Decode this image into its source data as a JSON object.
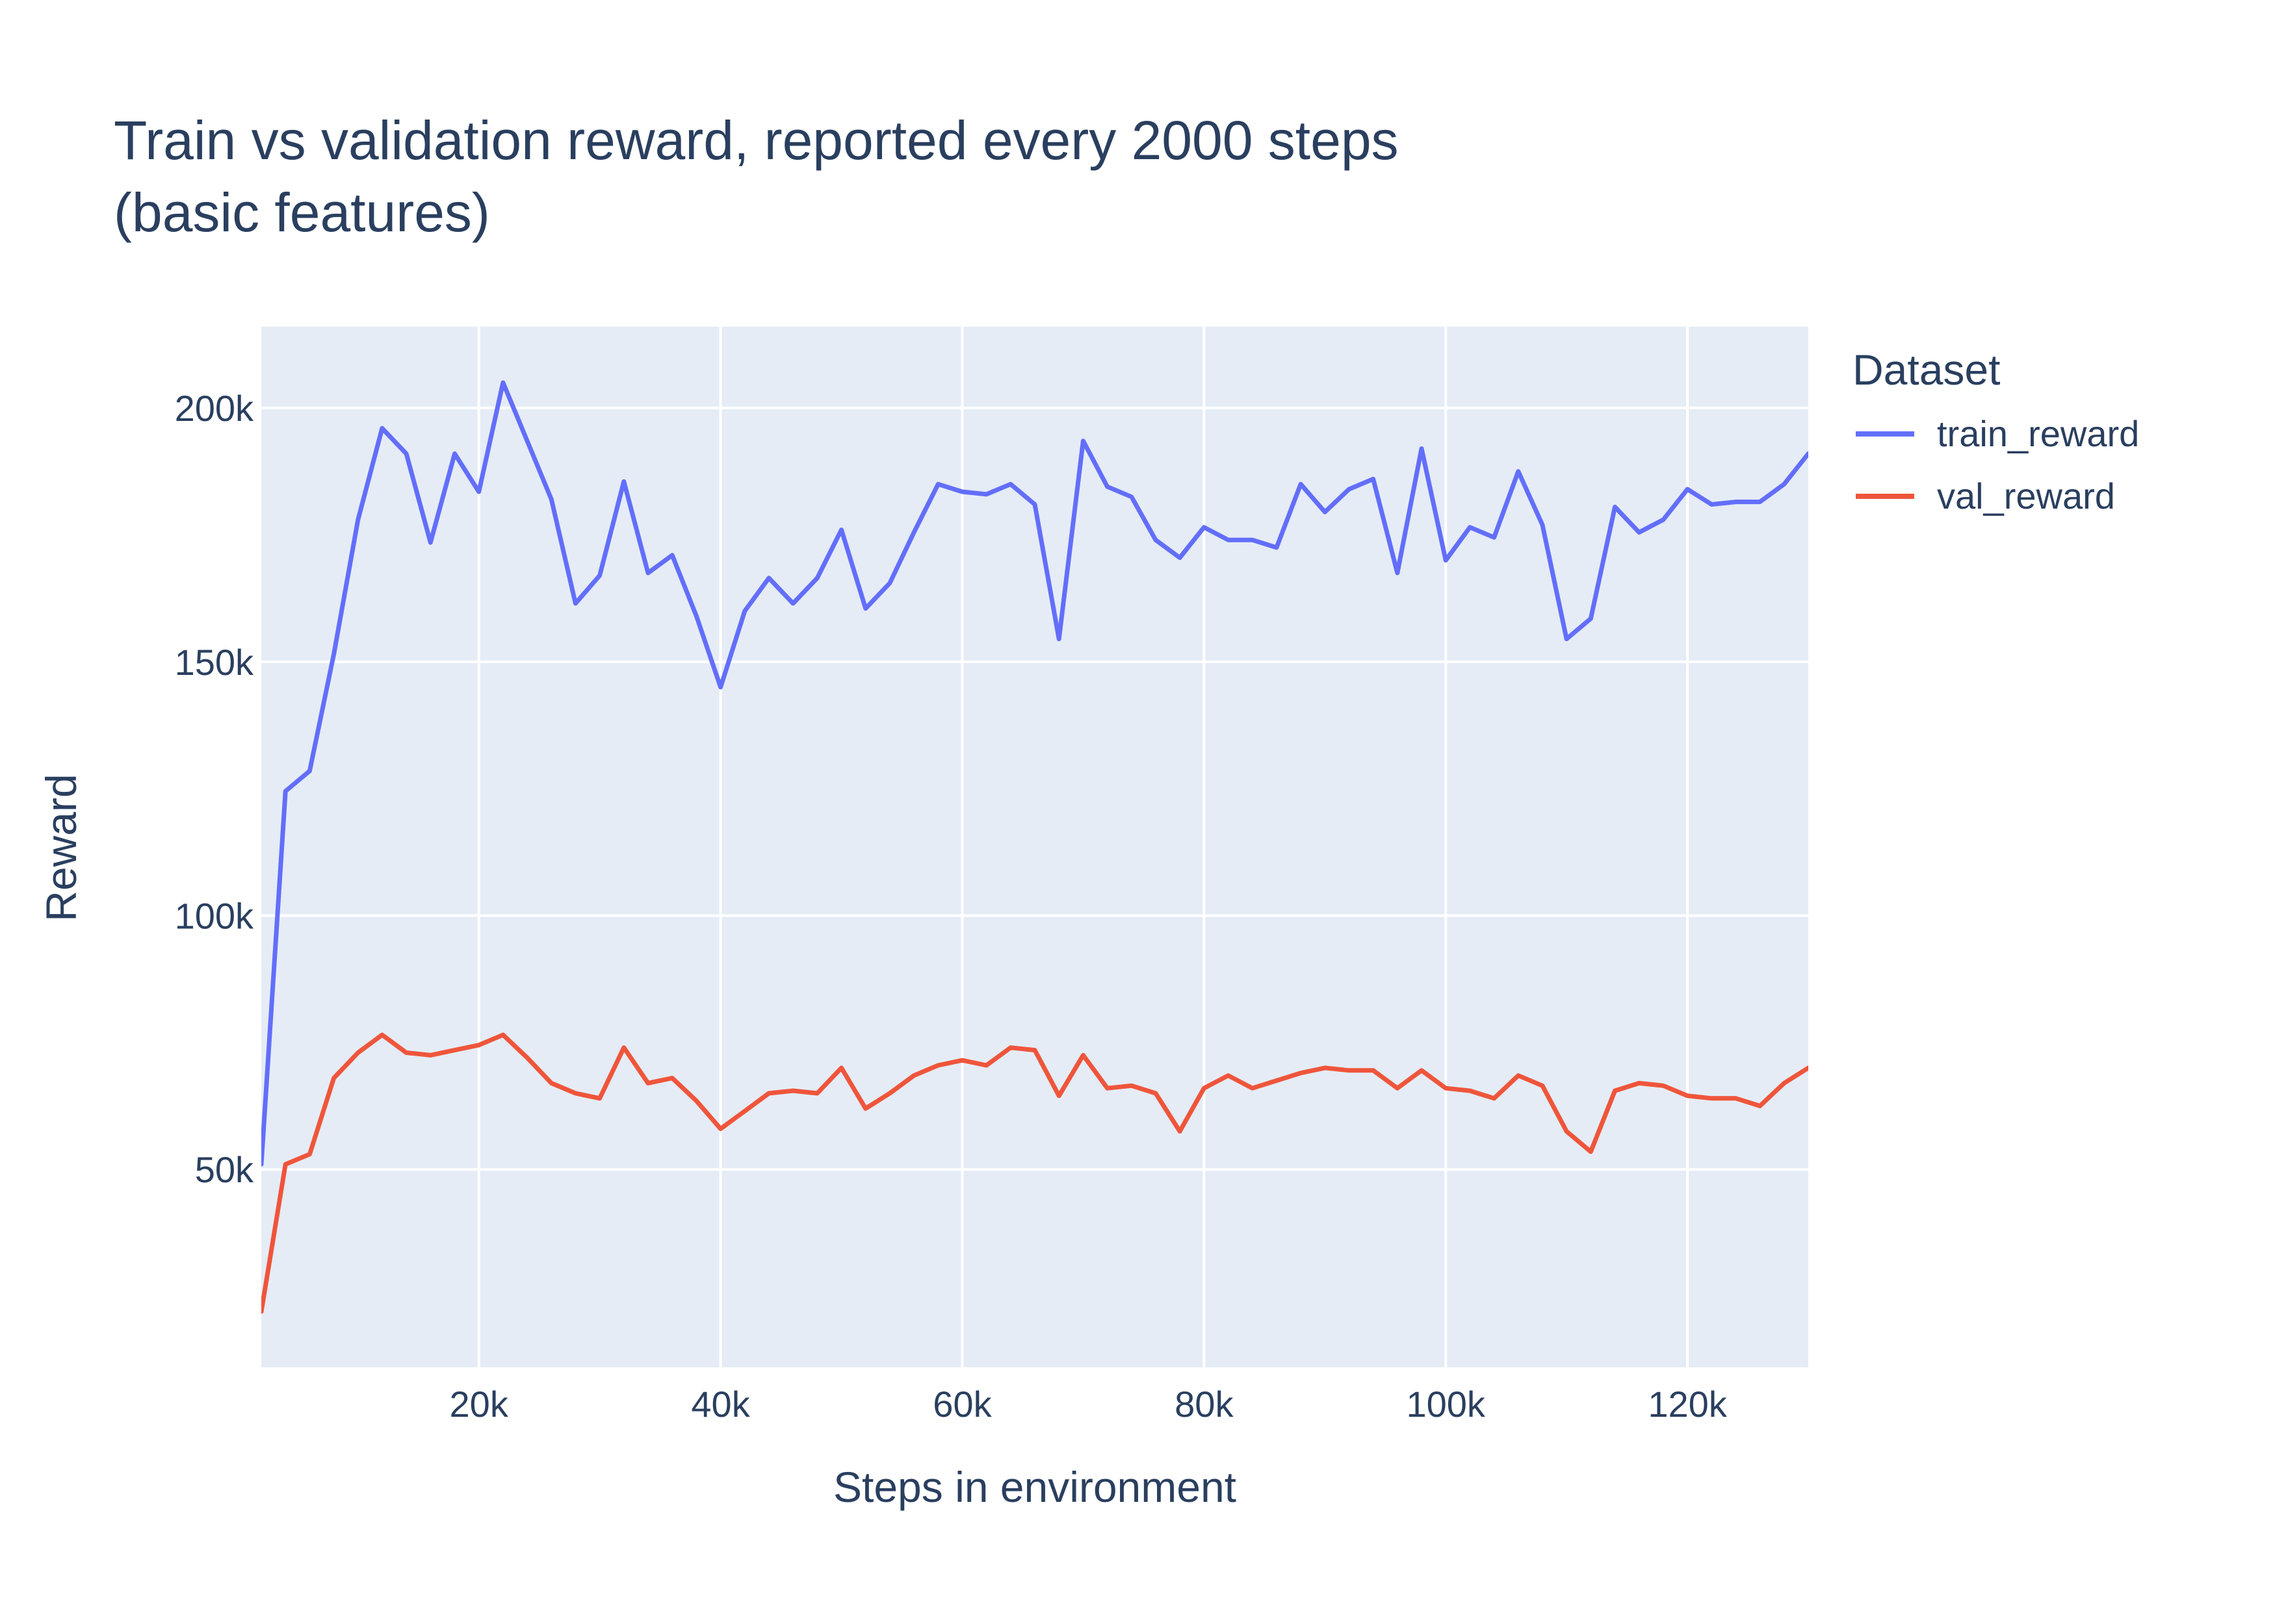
{
  "chart_data": {
    "type": "line",
    "title": "Train vs validation reward, reported every 2000 steps",
    "subtitle": "(basic features)",
    "xlabel": "Steps in environment",
    "ylabel": "Reward",
    "xlim": [
      2000,
      130000
    ],
    "ylim": [
      11000,
      216000
    ],
    "x_ticks": [
      20000,
      40000,
      60000,
      80000,
      100000,
      120000
    ],
    "x_tick_labels": [
      "20k",
      "40k",
      "60k",
      "80k",
      "100k",
      "120k"
    ],
    "y_ticks": [
      50000,
      100000,
      150000,
      200000
    ],
    "y_tick_labels": [
      "50k",
      "100k",
      "150k",
      "200k"
    ],
    "grid": true,
    "legend": {
      "title": "Dataset",
      "placement": "top-right outside"
    },
    "colors": {
      "plot_background": "#e5ecf6",
      "grid": "#ffffff",
      "text": "#2a3f5f"
    },
    "x": [
      2000,
      4000,
      6000,
      8000,
      10000,
      12000,
      14000,
      16000,
      18000,
      20000,
      22000,
      24000,
      26000,
      28000,
      30000,
      32000,
      34000,
      36000,
      38000,
      40000,
      42000,
      44000,
      46000,
      48000,
      50000,
      52000,
      54000,
      56000,
      58000,
      60000,
      62000,
      64000,
      66000,
      68000,
      70000,
      72000,
      74000,
      76000,
      78000,
      80000,
      82000,
      84000,
      86000,
      88000,
      90000,
      92000,
      94000,
      96000,
      98000,
      100000,
      102000,
      104000,
      106000,
      108000,
      110000,
      112000,
      114000,
      116000,
      118000,
      120000,
      122000,
      124000,
      126000,
      128000,
      130000
    ],
    "series": [
      {
        "name": "train_reward",
        "color": "#636efa",
        "values": [
          51000,
          124500,
          128500,
          151500,
          178000,
          196000,
          191000,
          173500,
          191000,
          183500,
          205000,
          193500,
          182000,
          161500,
          167000,
          185500,
          167500,
          171000,
          159000,
          145000,
          160000,
          166500,
          161500,
          166500,
          176000,
          160500,
          165500,
          175500,
          185000,
          183500,
          183000,
          185000,
          181000,
          154500,
          193500,
          184500,
          182500,
          174000,
          170500,
          176500,
          174000,
          174000,
          172500,
          185000,
          179500,
          184000,
          186000,
          167500,
          192000,
          170000,
          176500,
          174500,
          187500,
          177000,
          154500,
          158500,
          180500,
          175500,
          178000,
          184000,
          181000,
          181500,
          181500,
          185000,
          191000
        ]
      },
      {
        "name": "val_reward",
        "color": "#ef553b",
        "values": [
          22000,
          51000,
          53000,
          68000,
          73000,
          76500,
          73000,
          72500,
          73500,
          74500,
          76500,
          72000,
          67000,
          65000,
          64000,
          74000,
          67000,
          68000,
          63500,
          58000,
          61500,
          65000,
          65500,
          65000,
          70000,
          62000,
          65000,
          68500,
          70500,
          71500,
          70500,
          74000,
          73500,
          64500,
          72500,
          66000,
          66500,
          65000,
          57500,
          66000,
          68500,
          66000,
          67500,
          69000,
          70000,
          69500,
          69500,
          66000,
          69500,
          66000,
          65500,
          64000,
          68500,
          66500,
          57500,
          53500,
          65500,
          67000,
          66500,
          64500,
          64000,
          64000,
          62500,
          67000,
          70000
        ]
      }
    ]
  }
}
